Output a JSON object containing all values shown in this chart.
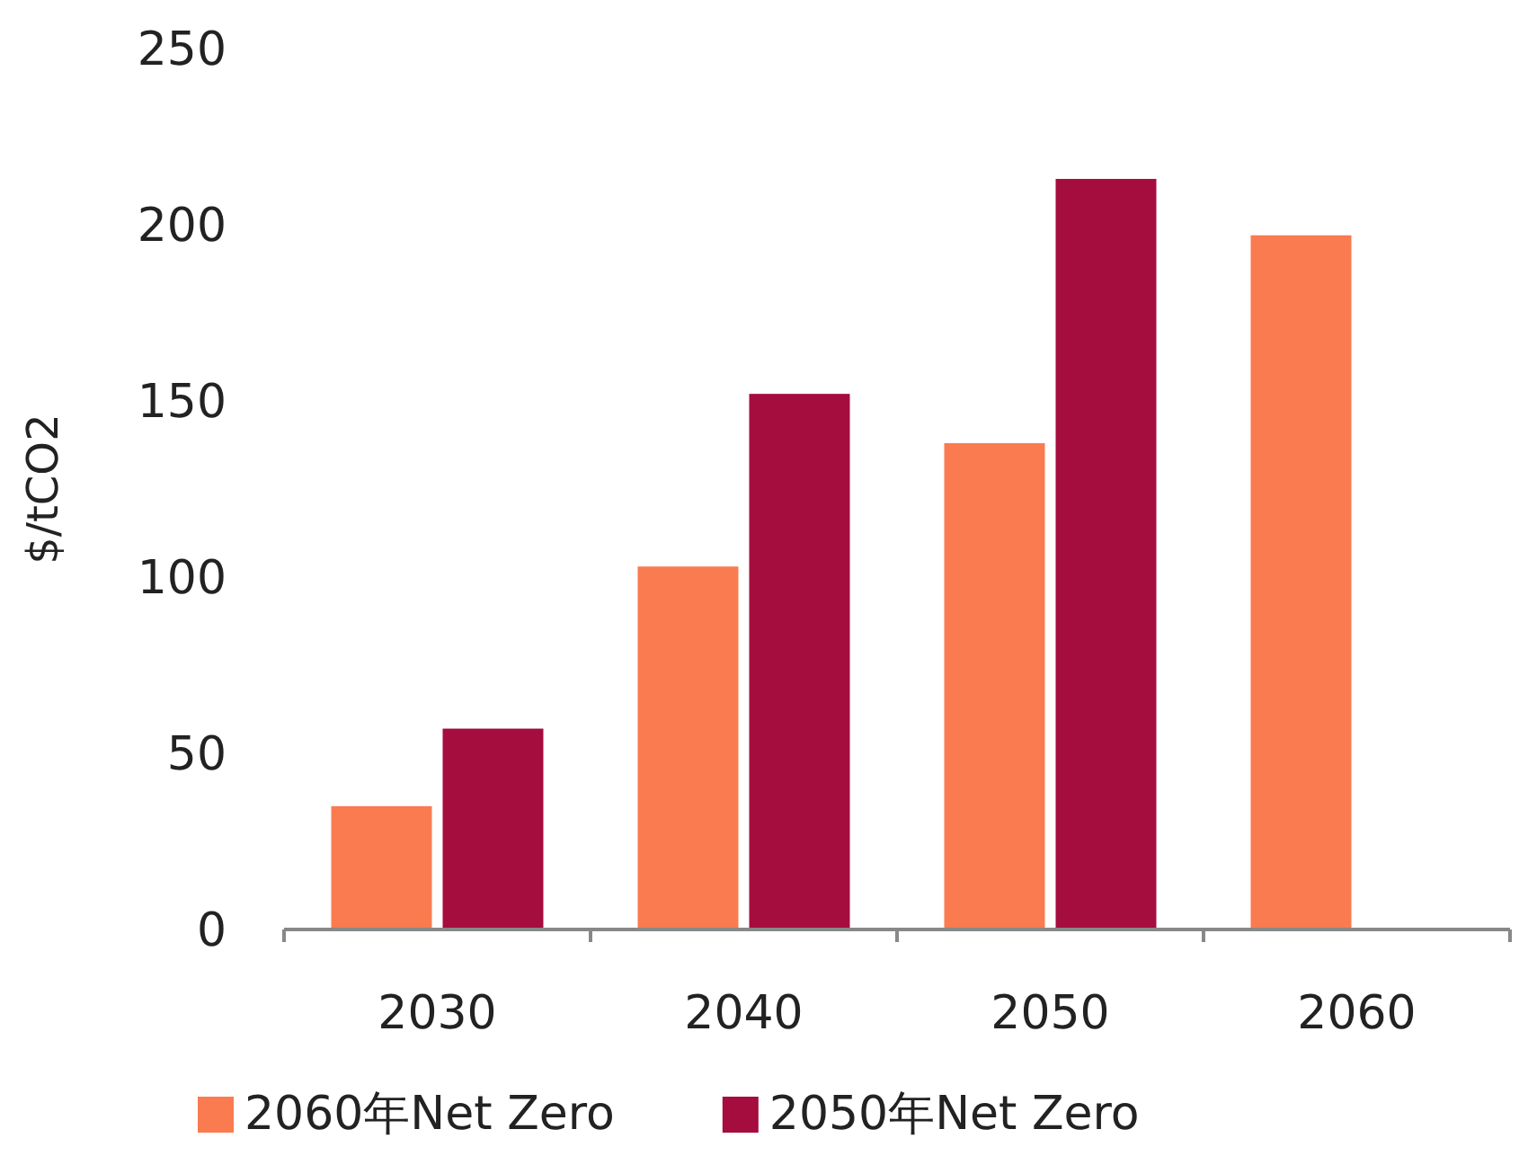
{
  "chart_data": {
    "type": "bar",
    "ylabel": "$/tCO2",
    "categories": [
      "2030",
      "2040",
      "2050",
      "2060"
    ],
    "series": [
      {
        "name": "2060年Net Zero",
        "color": "#f97b4f",
        "values": [
          35,
          103,
          138,
          197
        ]
      },
      {
        "name": "2050年Net Zero",
        "color": "#a50d3e",
        "values": [
          57,
          152,
          213,
          null
        ]
      }
    ],
    "ylim": [
      0,
      250
    ],
    "yticks": [
      0,
      50,
      100,
      150,
      200,
      250
    ],
    "grid": false,
    "legend": "bottom"
  }
}
